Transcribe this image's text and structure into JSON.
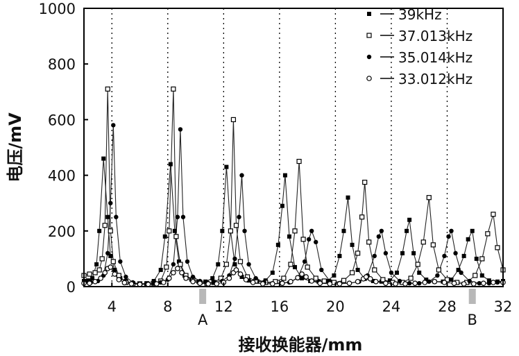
{
  "chart_data": {
    "type": "line",
    "xlabel": "接收换能器/mm",
    "ylabel": "电压/mV",
    "xlim": [
      2,
      32
    ],
    "ylim": [
      0,
      1000
    ],
    "x_ticks": [
      4,
      8,
      12,
      16,
      20,
      24,
      28,
      32
    ],
    "y_ticks": [
      0,
      200,
      400,
      600,
      800,
      1000
    ],
    "grid": "vertical dotted",
    "legend": "top-right",
    "markers": [
      {
        "label": "A",
        "x": 10.5
      },
      {
        "label": "B",
        "x": 29.8
      }
    ],
    "series": [
      {
        "name": "39kHz",
        "style": "filled-square",
        "peaks": [
          [
            3.4,
            460
          ],
          [
            8.2,
            440
          ],
          [
            12.2,
            430
          ],
          [
            16.4,
            400
          ],
          [
            20.9,
            320
          ],
          [
            25.3,
            240
          ],
          [
            29.8,
            200
          ]
        ],
        "points": [
          [
            2.0,
            20
          ],
          [
            2.3,
            22
          ],
          [
            2.6,
            30
          ],
          [
            2.9,
            80
          ],
          [
            3.1,
            200
          ],
          [
            3.4,
            460
          ],
          [
            3.7,
            250
          ],
          [
            3.9,
            110
          ],
          [
            4.2,
            60
          ],
          [
            4.6,
            30
          ],
          [
            5.0,
            20
          ],
          [
            5.5,
            12
          ],
          [
            6.0,
            10
          ],
          [
            6.5,
            12
          ],
          [
            7.0,
            20
          ],
          [
            7.5,
            60
          ],
          [
            7.8,
            180
          ],
          [
            8.2,
            440
          ],
          [
            8.5,
            200
          ],
          [
            8.8,
            90
          ],
          [
            9.2,
            40
          ],
          [
            9.7,
            25
          ],
          [
            10.2,
            18
          ],
          [
            10.7,
            18
          ],
          [
            11.2,
            30
          ],
          [
            11.6,
            80
          ],
          [
            11.9,
            200
          ],
          [
            12.2,
            430
          ],
          [
            12.5,
            200
          ],
          [
            12.8,
            80
          ],
          [
            13.3,
            35
          ],
          [
            13.8,
            22
          ],
          [
            14.4,
            18
          ],
          [
            15.0,
            22
          ],
          [
            15.5,
            50
          ],
          [
            15.9,
            150
          ],
          [
            16.2,
            290
          ],
          [
            16.4,
            400
          ],
          [
            16.7,
            180
          ],
          [
            17.1,
            70
          ],
          [
            17.6,
            30
          ],
          [
            18.2,
            20
          ],
          [
            18.8,
            18
          ],
          [
            19.4,
            20
          ],
          [
            19.9,
            40
          ],
          [
            20.3,
            110
          ],
          [
            20.6,
            200
          ],
          [
            20.9,
            320
          ],
          [
            21.2,
            150
          ],
          [
            21.6,
            60
          ],
          [
            22.1,
            28
          ],
          [
            22.7,
            20
          ],
          [
            23.3,
            18
          ],
          [
            23.9,
            22
          ],
          [
            24.4,
            50
          ],
          [
            24.8,
            120
          ],
          [
            25.1,
            200
          ],
          [
            25.3,
            240
          ],
          [
            25.6,
            120
          ],
          [
            26.0,
            50
          ],
          [
            26.5,
            25
          ],
          [
            27.1,
            18
          ],
          [
            27.7,
            18
          ],
          [
            28.3,
            25
          ],
          [
            28.8,
            60
          ],
          [
            29.2,
            110
          ],
          [
            29.5,
            170
          ],
          [
            29.8,
            200
          ],
          [
            30.1,
            100
          ],
          [
            30.5,
            40
          ],
          [
            31.0,
            22
          ],
          [
            31.6,
            18
          ],
          [
            32.0,
            20
          ]
        ]
      },
      {
        "name": "37.013kHz",
        "style": "open-square",
        "peaks": [
          [
            3.7,
            710
          ],
          [
            8.4,
            710
          ],
          [
            12.7,
            600
          ],
          [
            17.4,
            450
          ],
          [
            22.1,
            375
          ],
          [
            26.7,
            320
          ],
          [
            31.3,
            260
          ]
        ],
        "points": [
          [
            2.0,
            40
          ],
          [
            2.4,
            45
          ],
          [
            2.8,
            50
          ],
          [
            3.1,
            60
          ],
          [
            3.3,
            100
          ],
          [
            3.5,
            220
          ],
          [
            3.7,
            710
          ],
          [
            3.9,
            200
          ],
          [
            4.1,
            90
          ],
          [
            4.5,
            40
          ],
          [
            5.0,
            15
          ],
          [
            5.5,
            10
          ],
          [
            6.0,
            10
          ],
          [
            6.5,
            10
          ],
          [
            7.0,
            12
          ],
          [
            7.5,
            20
          ],
          [
            7.9,
            70
          ],
          [
            8.1,
            200
          ],
          [
            8.4,
            710
          ],
          [
            8.6,
            180
          ],
          [
            8.9,
            80
          ],
          [
            9.3,
            40
          ],
          [
            9.8,
            25
          ],
          [
            10.3,
            15
          ],
          [
            10.8,
            12
          ],
          [
            11.3,
            15
          ],
          [
            11.8,
            30
          ],
          [
            12.2,
            80
          ],
          [
            12.5,
            200
          ],
          [
            12.7,
            600
          ],
          [
            12.9,
            220
          ],
          [
            13.2,
            90
          ],
          [
            13.7,
            35
          ],
          [
            14.3,
            20
          ],
          [
            15.0,
            15
          ],
          [
            15.7,
            18
          ],
          [
            16.3,
            30
          ],
          [
            16.8,
            80
          ],
          [
            17.1,
            200
          ],
          [
            17.4,
            450
          ],
          [
            17.7,
            170
          ],
          [
            18.0,
            70
          ],
          [
            18.6,
            30
          ],
          [
            19.2,
            20
          ],
          [
            19.9,
            15
          ],
          [
            20.6,
            22
          ],
          [
            21.2,
            50
          ],
          [
            21.6,
            120
          ],
          [
            21.9,
            250
          ],
          [
            22.1,
            375
          ],
          [
            22.4,
            160
          ],
          [
            22.8,
            60
          ],
          [
            23.4,
            25
          ],
          [
            24.1,
            15
          ],
          [
            24.8,
            15
          ],
          [
            25.4,
            30
          ],
          [
            25.9,
            80
          ],
          [
            26.3,
            160
          ],
          [
            26.7,
            320
          ],
          [
            27.0,
            150
          ],
          [
            27.4,
            60
          ],
          [
            28.0,
            25
          ],
          [
            28.7,
            15
          ],
          [
            29.4,
            15
          ],
          [
            30.0,
            40
          ],
          [
            30.5,
            100
          ],
          [
            30.9,
            190
          ],
          [
            31.3,
            260
          ],
          [
            31.6,
            140
          ],
          [
            32.0,
            60
          ]
        ]
      },
      {
        "name": "35.014kHz",
        "style": "filled-circle",
        "peaks": [
          [
            4.1,
            580
          ],
          [
            8.9,
            565
          ],
          [
            13.3,
            400
          ],
          [
            18.3,
            200
          ],
          [
            23.3,
            200
          ],
          [
            28.3,
            200
          ]
        ],
        "points": [
          [
            2.0,
            15
          ],
          [
            2.5,
            15
          ],
          [
            3.0,
            20
          ],
          [
            3.4,
            40
          ],
          [
            3.7,
            120
          ],
          [
            3.9,
            300
          ],
          [
            4.1,
            580
          ],
          [
            4.3,
            250
          ],
          [
            4.6,
            90
          ],
          [
            5.0,
            35
          ],
          [
            5.5,
            15
          ],
          [
            6.0,
            10
          ],
          [
            6.5,
            10
          ],
          [
            7.0,
            12
          ],
          [
            7.5,
            15
          ],
          [
            8.0,
            25
          ],
          [
            8.4,
            80
          ],
          [
            8.7,
            250
          ],
          [
            8.9,
            565
          ],
          [
            9.1,
            250
          ],
          [
            9.4,
            90
          ],
          [
            9.8,
            35
          ],
          [
            10.3,
            20
          ],
          [
            10.8,
            15
          ],
          [
            11.3,
            15
          ],
          [
            11.9,
            20
          ],
          [
            12.4,
            40
          ],
          [
            12.8,
            100
          ],
          [
            13.1,
            250
          ],
          [
            13.3,
            400
          ],
          [
            13.5,
            200
          ],
          [
            13.8,
            80
          ],
          [
            14.3,
            30
          ],
          [
            14.9,
            15
          ],
          [
            15.5,
            12
          ],
          [
            16.1,
            12
          ],
          [
            16.7,
            15
          ],
          [
            17.3,
            30
          ],
          [
            17.8,
            90
          ],
          [
            18.1,
            170
          ],
          [
            18.3,
            200
          ],
          [
            18.6,
            160
          ],
          [
            19.0,
            60
          ],
          [
            19.6,
            20
          ],
          [
            20.3,
            12
          ],
          [
            21.0,
            12
          ],
          [
            21.7,
            18
          ],
          [
            22.3,
            40
          ],
          [
            22.8,
            110
          ],
          [
            23.1,
            180
          ],
          [
            23.3,
            200
          ],
          [
            23.6,
            120
          ],
          [
            24.0,
            50
          ],
          [
            24.6,
            20
          ],
          [
            25.3,
            12
          ],
          [
            26.0,
            12
          ],
          [
            26.7,
            18
          ],
          [
            27.3,
            40
          ],
          [
            27.8,
            110
          ],
          [
            28.1,
            180
          ],
          [
            28.3,
            200
          ],
          [
            28.6,
            120
          ],
          [
            29.0,
            50
          ],
          [
            29.6,
            20
          ],
          [
            30.3,
            12
          ],
          [
            31.0,
            12
          ],
          [
            31.6,
            15
          ],
          [
            32.0,
            18
          ]
        ]
      },
      {
        "name": "33.012kHz",
        "style": "open-circle",
        "peaks": [
          [
            3.9,
            70
          ],
          [
            8.7,
            65
          ],
          [
            12.9,
            60
          ],
          [
            17.6,
            45
          ],
          [
            22.2,
            35
          ]
        ],
        "points": [
          [
            2.0,
            12
          ],
          [
            2.4,
            12
          ],
          [
            2.8,
            18
          ],
          [
            3.2,
            30
          ],
          [
            3.5,
            50
          ],
          [
            3.7,
            65
          ],
          [
            3.9,
            70
          ],
          [
            4.2,
            45
          ],
          [
            4.5,
            25
          ],
          [
            4.9,
            14
          ],
          [
            5.4,
            10
          ],
          [
            6.0,
            8
          ],
          [
            6.6,
            8
          ],
          [
            7.2,
            10
          ],
          [
            7.7,
            15
          ],
          [
            8.1,
            30
          ],
          [
            8.4,
            50
          ],
          [
            8.7,
            65
          ],
          [
            9.0,
            50
          ],
          [
            9.3,
            30
          ],
          [
            9.8,
            18
          ],
          [
            10.3,
            12
          ],
          [
            10.9,
            10
          ],
          [
            11.5,
            10
          ],
          [
            12.0,
            15
          ],
          [
            12.4,
            30
          ],
          [
            12.7,
            50
          ],
          [
            12.9,
            60
          ],
          [
            13.2,
            45
          ],
          [
            13.6,
            25
          ],
          [
            14.1,
            15
          ],
          [
            14.8,
            10
          ],
          [
            15.5,
            10
          ],
          [
            16.2,
            12
          ],
          [
            16.8,
            18
          ],
          [
            17.3,
            32
          ],
          [
            17.6,
            45
          ],
          [
            17.9,
            35
          ],
          [
            18.3,
            20
          ],
          [
            18.9,
            12
          ],
          [
            19.6,
            10
          ],
          [
            20.3,
            10
          ],
          [
            21.0,
            12
          ],
          [
            21.6,
            18
          ],
          [
            22.0,
            28
          ],
          [
            22.2,
            35
          ],
          [
            22.5,
            28
          ],
          [
            22.9,
            18
          ],
          [
            23.6,
            12
          ],
          [
            24.3,
            10
          ],
          [
            25.0,
            10
          ],
          [
            25.7,
            12
          ],
          [
            26.4,
            15
          ],
          [
            27.1,
            18
          ],
          [
            27.8,
            15
          ],
          [
            28.5,
            12
          ],
          [
            29.2,
            10
          ],
          [
            29.9,
            10
          ],
          [
            30.6,
            12
          ],
          [
            31.3,
            15
          ],
          [
            32.0,
            15
          ]
        ]
      }
    ]
  }
}
